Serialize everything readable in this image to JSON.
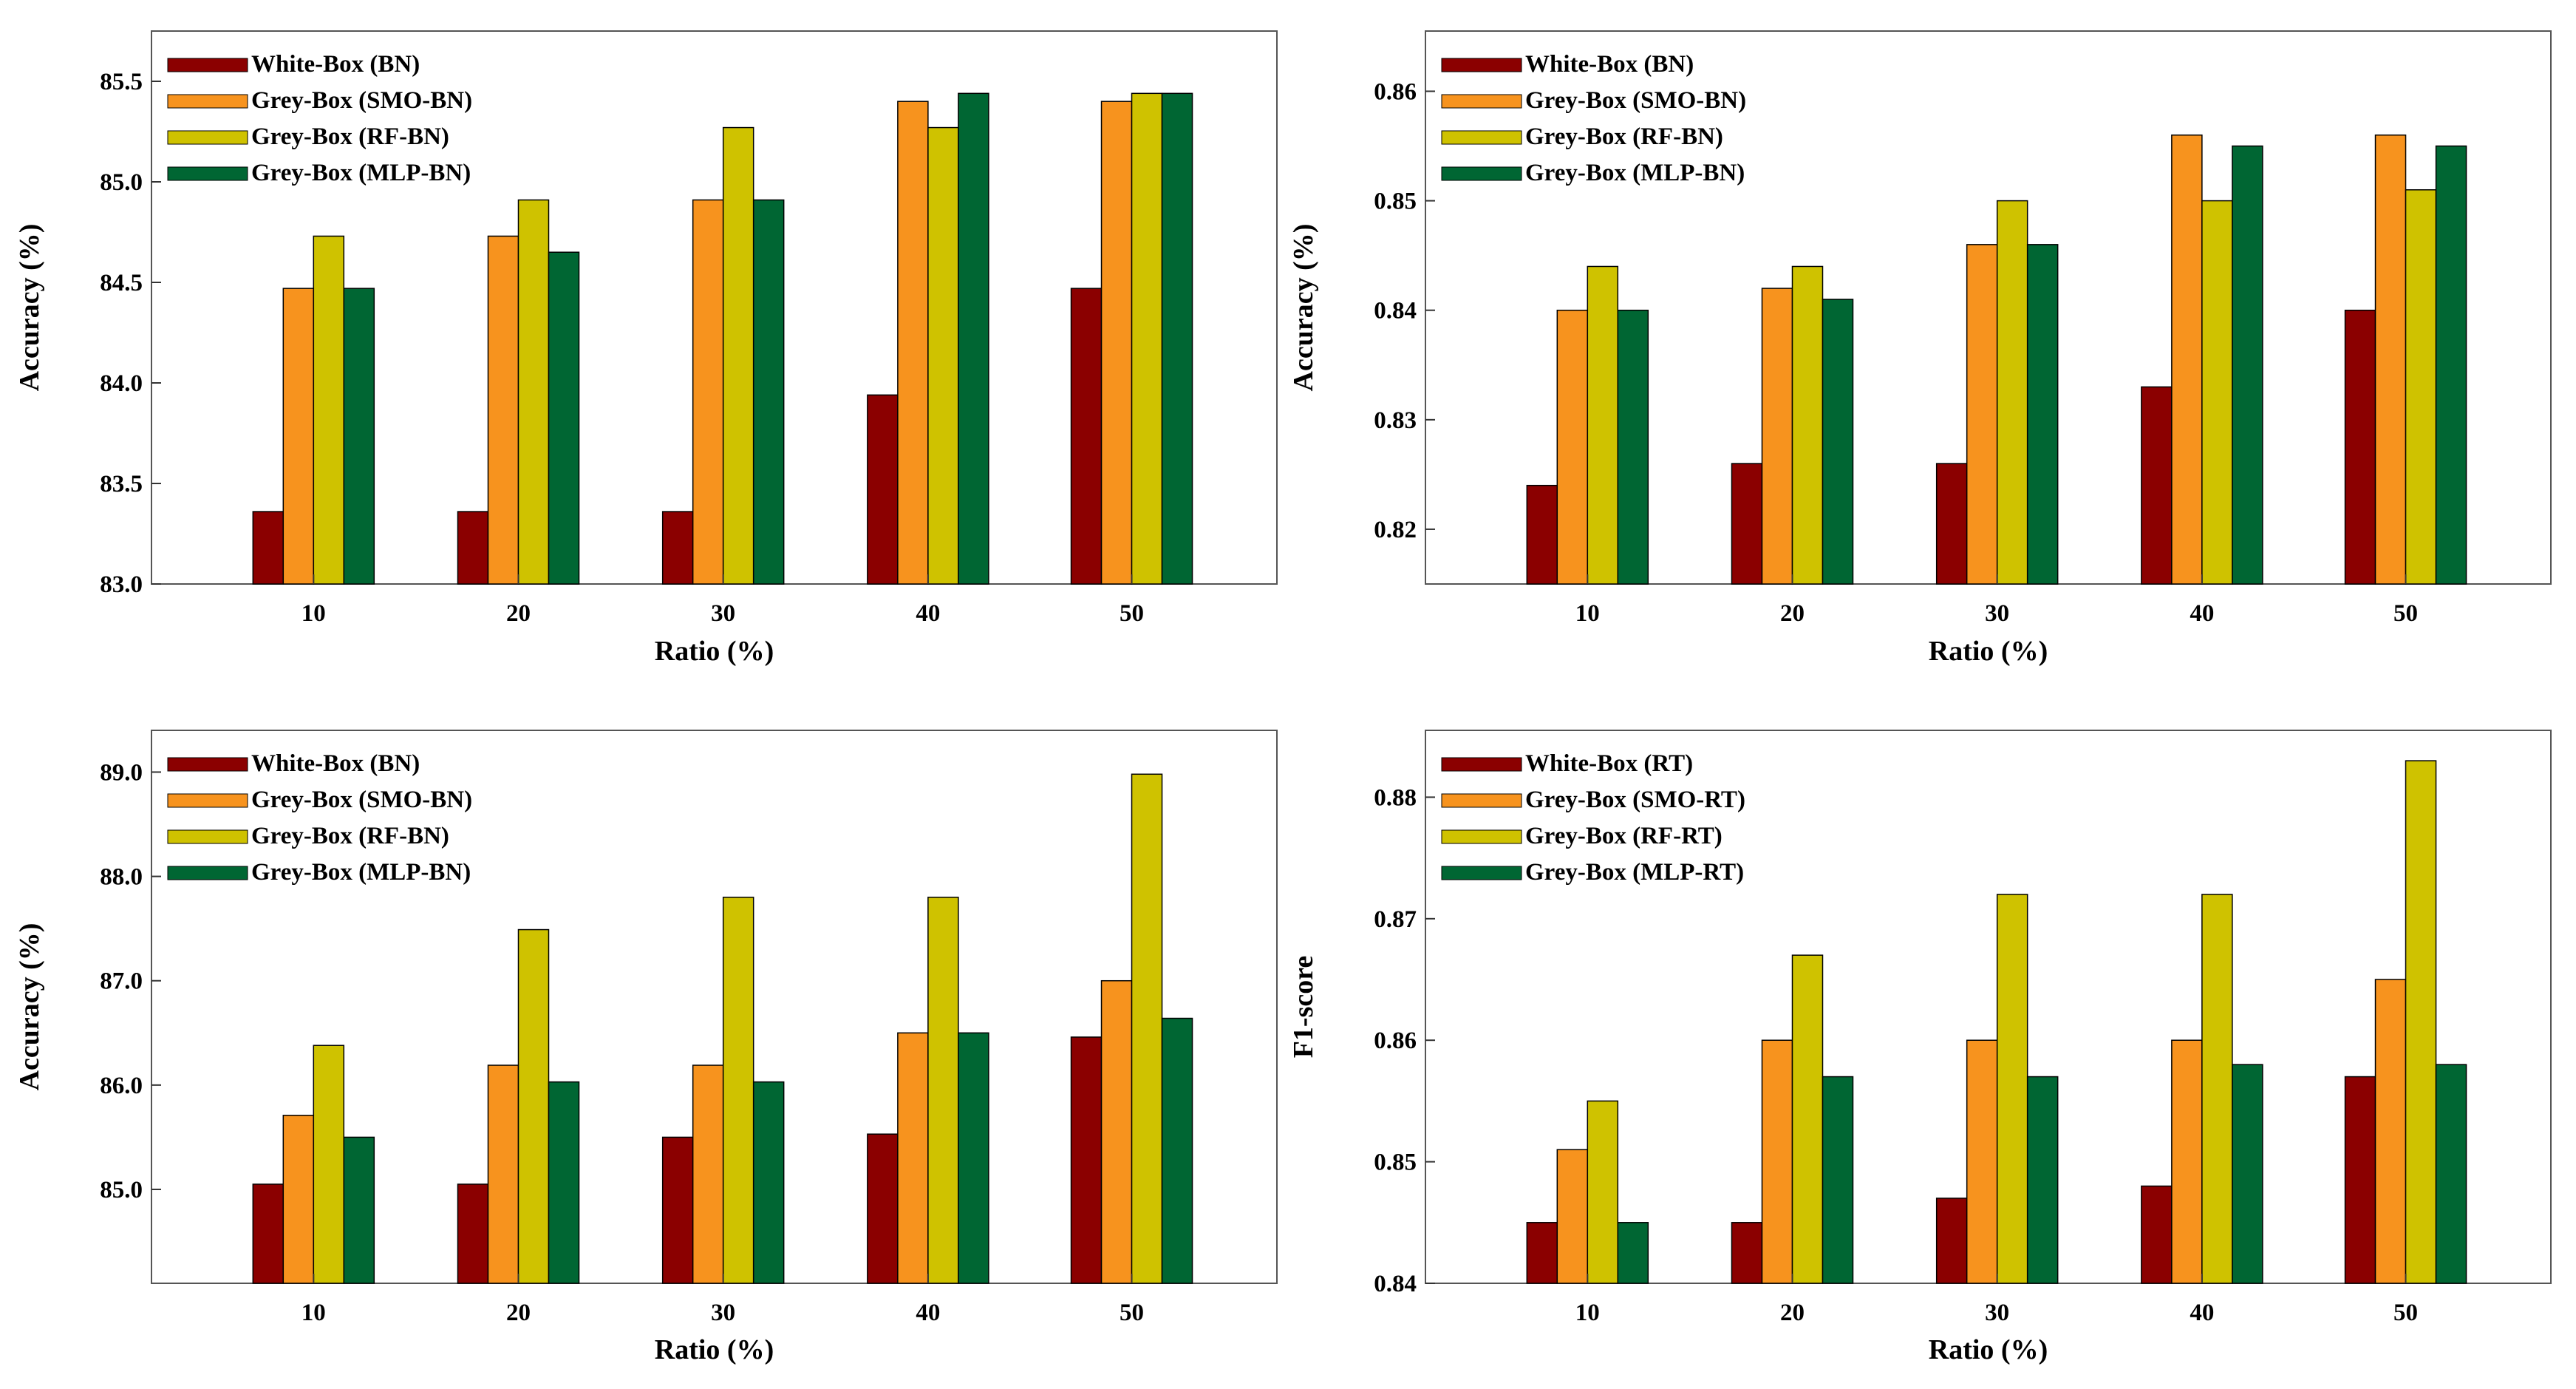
{
  "colors": {
    "White-Box": "#8b0000",
    "Grey-Box-SMO": "#f7931e",
    "Grey-Box-RF": "#cfc200",
    "Grey-Box-MLP": "#006633"
  },
  "chart_data": [
    {
      "type": "bar",
      "xlabel": "Ratio (%)",
      "ylabel": "Accuracy (%)",
      "ylim": [
        83.0,
        85.75
      ],
      "yticks": [
        "83.0",
        "83.5",
        "84.0",
        "84.5",
        "85.0",
        "85.5"
      ],
      "ytick_values": [
        83.0,
        83.5,
        84.0,
        84.5,
        85.0,
        85.5
      ],
      "categories": [
        "10",
        "20",
        "30",
        "40",
        "50"
      ],
      "legend_position": "top-left",
      "series": [
        {
          "name": "White-Box (BN)",
          "color_key": "White-Box",
          "values": [
            83.36,
            83.36,
            83.36,
            83.94,
            84.47
          ]
        },
        {
          "name": "Grey-Box (SMO-BN)",
          "color_key": "Grey-Box-SMO",
          "values": [
            84.47,
            84.73,
            84.91,
            85.4,
            85.4
          ]
        },
        {
          "name": "Grey-Box (RF-BN)",
          "color_key": "Grey-Box-RF",
          "values": [
            84.73,
            84.91,
            85.27,
            85.27,
            85.44
          ]
        },
        {
          "name": "Grey-Box (MLP-BN)",
          "color_key": "Grey-Box-MLP",
          "values": [
            84.47,
            84.65,
            84.91,
            85.44,
            85.44
          ]
        }
      ]
    },
    {
      "type": "bar",
      "xlabel": "Ratio (%)",
      "ylabel": "Accuracy (%)",
      "ylim": [
        0.815,
        0.8655
      ],
      "yticks": [
        "0.82",
        "0.83",
        "0.84",
        "0.85",
        "0.86"
      ],
      "ytick_values": [
        0.82,
        0.83,
        0.84,
        0.85,
        0.86
      ],
      "categories": [
        "10",
        "20",
        "30",
        "40",
        "50"
      ],
      "legend_position": "top-left",
      "series": [
        {
          "name": "White-Box (BN)",
          "color_key": "White-Box",
          "values": [
            0.824,
            0.826,
            0.826,
            0.833,
            0.84
          ]
        },
        {
          "name": "Grey-Box (SMO-BN)",
          "color_key": "Grey-Box-SMO",
          "values": [
            0.84,
            0.842,
            0.846,
            0.856,
            0.856
          ]
        },
        {
          "name": "Grey-Box (RF-BN)",
          "color_key": "Grey-Box-RF",
          "values": [
            0.844,
            0.844,
            0.85,
            0.85,
            0.851
          ]
        },
        {
          "name": "Grey-Box (MLP-BN)",
          "color_key": "Grey-Box-MLP",
          "values": [
            0.84,
            0.841,
            0.846,
            0.855,
            0.855
          ]
        }
      ]
    },
    {
      "type": "bar",
      "xlabel": "Ratio (%)",
      "ylabel": "Accuracy (%)",
      "ylim": [
        84.1,
        89.4
      ],
      "yticks": [
        "85.0",
        "86.0",
        "87.0",
        "88.0",
        "89.0"
      ],
      "ytick_values": [
        85.0,
        86.0,
        87.0,
        88.0,
        89.0
      ],
      "categories": [
        "10",
        "20",
        "30",
        "40",
        "50"
      ],
      "legend_position": "top-left",
      "series": [
        {
          "name": "White-Box (BN)",
          "color_key": "White-Box",
          "values": [
            85.05,
            85.05,
            85.5,
            85.53,
            86.46
          ]
        },
        {
          "name": "Grey-Box (SMO-BN)",
          "color_key": "Grey-Box-SMO",
          "values": [
            85.71,
            86.19,
            86.19,
            86.5,
            87.0
          ]
        },
        {
          "name": "Grey-Box (RF-BN)",
          "color_key": "Grey-Box-RF",
          "values": [
            86.38,
            87.49,
            87.8,
            87.8,
            88.98
          ]
        },
        {
          "name": "Grey-Box (MLP-BN)",
          "color_key": "Grey-Box-MLP",
          "values": [
            85.5,
            86.03,
            86.03,
            86.5,
            86.64
          ]
        }
      ]
    },
    {
      "type": "bar",
      "xlabel": "Ratio (%)",
      "ylabel": "F1-score",
      "ylim": [
        0.84,
        0.8855
      ],
      "yticks": [
        "0.84",
        "0.85",
        "0.86",
        "0.87",
        "0.88"
      ],
      "ytick_values": [
        0.84,
        0.85,
        0.86,
        0.87,
        0.88
      ],
      "categories": [
        "10",
        "20",
        "30",
        "40",
        "50"
      ],
      "legend_position": "top-left",
      "series": [
        {
          "name": "White-Box (RT)",
          "color_key": "White-Box",
          "values": [
            0.845,
            0.845,
            0.847,
            0.848,
            0.857
          ]
        },
        {
          "name": "Grey-Box (SMO-RT)",
          "color_key": "Grey-Box-SMO",
          "values": [
            0.851,
            0.86,
            0.86,
            0.86,
            0.865
          ]
        },
        {
          "name": "Grey-Box (RF-RT)",
          "color_key": "Grey-Box-RF",
          "values": [
            0.855,
            0.867,
            0.872,
            0.872,
            0.883
          ]
        },
        {
          "name": "Grey-Box (MLP-RT)",
          "color_key": "Grey-Box-MLP",
          "values": [
            0.845,
            0.857,
            0.857,
            0.858,
            0.858
          ]
        }
      ]
    }
  ]
}
